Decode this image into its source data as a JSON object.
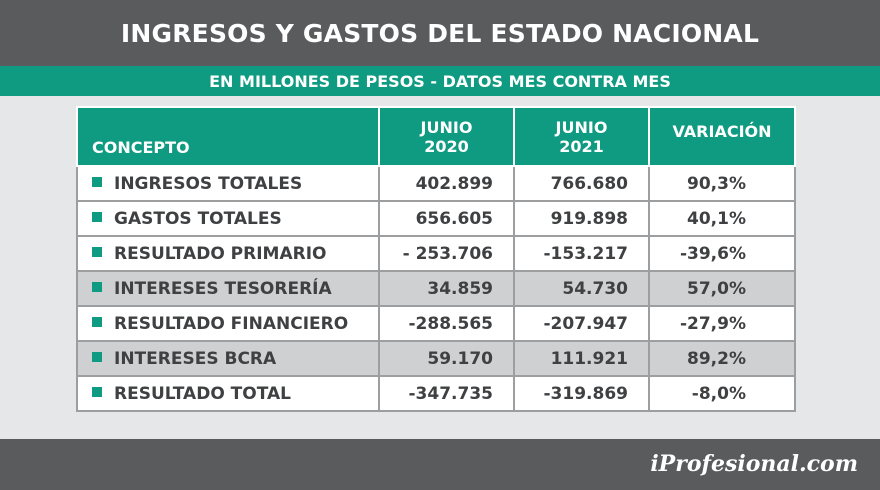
{
  "header": {
    "title": "INGRESOS Y GASTOS DEL ESTADO NACIONAL",
    "subtitle": "EN MILLONES DE PESOS - DATOS MES CONTRA MES"
  },
  "colors": {
    "accent": "#0f9b82",
    "dark_bar": "#5a5b5d",
    "shaded_row": "#cfd0d2"
  },
  "chart_data": {
    "type": "table",
    "columns": [
      {
        "line1": "CONCEPTO",
        "line2": ""
      },
      {
        "line1": "JUNIO",
        "line2": "2020"
      },
      {
        "line1": "JUNIO",
        "line2": "2021"
      },
      {
        "line1": "VARIACIÓN",
        "line2": ""
      }
    ],
    "rows": [
      {
        "concepto": "INGRESOS TOTALES",
        "junio_2020": "402.899",
        "junio_2021": "766.680",
        "variacion": "90,3%",
        "shaded": false
      },
      {
        "concepto": "GASTOS TOTALES",
        "junio_2020": "656.605",
        "junio_2021": "919.898",
        "variacion": "40,1%",
        "shaded": false
      },
      {
        "concepto": "RESULTADO PRIMARIO",
        "junio_2020": "- 253.706",
        "junio_2021": "-153.217",
        "variacion": "-39,6%",
        "shaded": false
      },
      {
        "concepto": "INTERESES TESORERÍA",
        "junio_2020": "34.859",
        "junio_2021": "54.730",
        "variacion": "57,0%",
        "shaded": true
      },
      {
        "concepto": "RESULTADO FINANCIERO",
        "junio_2020": "-288.565",
        "junio_2021": "-207.947",
        "variacion": "-27,9%",
        "shaded": false
      },
      {
        "concepto": "INTERESES BCRA",
        "junio_2020": "59.170",
        "junio_2021": "111.921",
        "variacion": "89,2%",
        "shaded": true
      },
      {
        "concepto": "RESULTADO TOTAL",
        "junio_2020": "-347.735",
        "junio_2021": "-319.869",
        "variacion": "-8,0%",
        "shaded": false
      }
    ]
  },
  "footer": {
    "brand": "iProfesional.com"
  }
}
